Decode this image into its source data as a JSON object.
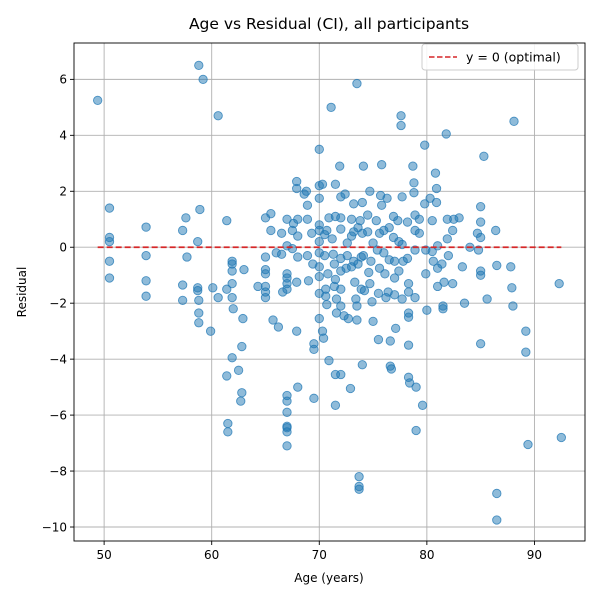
{
  "chart_data": {
    "type": "scatter",
    "title": "Age vs Residual (CI), all participants",
    "xlabel": "Age (years)",
    "ylabel": "Residual",
    "xlim": [
      47.2,
      94.7
    ],
    "ylim": [
      -10.5,
      7.3
    ],
    "xticks": [
      50,
      60,
      70,
      80,
      90
    ],
    "yticks": [
      -10,
      -8,
      -6,
      -4,
      -2,
      0,
      2,
      4,
      6
    ],
    "xtick_labels": [
      "50",
      "60",
      "70",
      "80",
      "90"
    ],
    "ytick_labels": [
      "−10",
      "−8",
      "−6",
      "−4",
      "−2",
      "0",
      "2",
      "4",
      "6"
    ],
    "grid": true,
    "legend_position": "top-right",
    "point_color": "#1f77b4",
    "series": [
      {
        "values_xy": [
          [
            49.4,
            5.25
          ],
          [
            50.5,
            1.4
          ],
          [
            50.5,
            0.35
          ],
          [
            50.5,
            0.2
          ],
          [
            50.5,
            -0.5
          ],
          [
            50.5,
            -1.1
          ],
          [
            53.9,
            0.72
          ],
          [
            53.9,
            -0.3
          ],
          [
            53.9,
            -1.2
          ],
          [
            53.9,
            -1.75
          ],
          [
            57.3,
            0.6
          ],
          [
            57.6,
            1.05
          ],
          [
            57.7,
            -0.35
          ],
          [
            57.3,
            -1.35
          ],
          [
            57.3,
            -1.9
          ],
          [
            58.8,
            6.5
          ],
          [
            59.2,
            6.0
          ],
          [
            58.9,
            1.35
          ],
          [
            58.7,
            0.2
          ],
          [
            58.7,
            -1.45
          ],
          [
            58.7,
            -1.55
          ],
          [
            58.8,
            -1.9
          ],
          [
            58.8,
            -2.35
          ],
          [
            58.8,
            -2.7
          ],
          [
            60.6,
            4.7
          ],
          [
            60.1,
            -1.45
          ],
          [
            60.6,
            -1.8
          ],
          [
            59.9,
            -3.0
          ],
          [
            61.4,
            0.95
          ],
          [
            61.4,
            -1.5
          ],
          [
            61.9,
            -0.5
          ],
          [
            61.9,
            -0.6
          ],
          [
            61.9,
            -0.85
          ],
          [
            61.9,
            -1.3
          ],
          [
            61.9,
            -1.8
          ],
          [
            62.0,
            -2.2
          ],
          [
            61.9,
            -3.95
          ],
          [
            61.4,
            -4.6
          ],
          [
            61.5,
            -6.3
          ],
          [
            61.5,
            -6.6
          ],
          [
            62.5,
            -4.4
          ],
          [
            62.8,
            -3.55
          ],
          [
            62.9,
            -2.55
          ],
          [
            63.0,
            -0.8
          ],
          [
            62.8,
            -5.2
          ],
          [
            62.7,
            -5.5
          ],
          [
            64.3,
            -1.4
          ],
          [
            65.0,
            1.05
          ],
          [
            65.0,
            -0.35
          ],
          [
            65.0,
            -0.8
          ],
          [
            65.0,
            -0.95
          ],
          [
            65.0,
            -1.4
          ],
          [
            65.0,
            -1.6
          ],
          [
            65.0,
            -1.8
          ],
          [
            65.5,
            1.2
          ],
          [
            65.5,
            0.6
          ],
          [
            66.0,
            -0.2
          ],
          [
            65.7,
            -2.6
          ],
          [
            66.2,
            -2.85
          ],
          [
            66.5,
            0.5
          ],
          [
            66.5,
            -0.25
          ],
          [
            66.6,
            -1.6
          ],
          [
            67.0,
            1.0
          ],
          [
            67.0,
            0.05
          ],
          [
            67.0,
            -0.95
          ],
          [
            67.0,
            -1.1
          ],
          [
            67.0,
            -1.3
          ],
          [
            67.0,
            -1.5
          ],
          [
            67.0,
            -5.3
          ],
          [
            67.0,
            -5.5
          ],
          [
            67.0,
            -5.9
          ],
          [
            67.0,
            -6.4
          ],
          [
            67.0,
            -6.45
          ],
          [
            67.0,
            -6.6
          ],
          [
            67.0,
            -7.1
          ],
          [
            67.5,
            0.6
          ],
          [
            67.5,
            -0.05
          ],
          [
            67.6,
            0.85
          ],
          [
            67.9,
            2.35
          ],
          [
            67.9,
            2.1
          ],
          [
            68.0,
            0.4
          ],
          [
            68.0,
            1.0
          ],
          [
            68.0,
            -0.35
          ],
          [
            67.9,
            -1.25
          ],
          [
            67.9,
            -3.0
          ],
          [
            68.0,
            -5.0
          ],
          [
            68.6,
            1.9
          ],
          [
            68.8,
            2.0
          ],
          [
            68.9,
            1.5
          ],
          [
            68.9,
            1.0
          ],
          [
            68.9,
            -0.3
          ],
          [
            69.0,
            -1.2
          ],
          [
            69.3,
            0.5
          ],
          [
            69.4,
            -0.6
          ],
          [
            69.5,
            -3.45
          ],
          [
            69.5,
            -3.65
          ],
          [
            69.5,
            -5.4
          ],
          [
            70.0,
            3.5
          ],
          [
            70.0,
            2.2
          ],
          [
            70.0,
            1.75
          ],
          [
            70.0,
            0.8
          ],
          [
            70.0,
            0.6
          ],
          [
            70.0,
            0.2
          ],
          [
            70.0,
            -0.2
          ],
          [
            70.0,
            -0.7
          ],
          [
            70.0,
            -1.05
          ],
          [
            70.0,
            -1.65
          ],
          [
            70.0,
            -2.55
          ],
          [
            70.3,
            2.25
          ],
          [
            70.3,
            -3.0
          ],
          [
            70.4,
            -3.25
          ],
          [
            70.5,
            0.45
          ],
          [
            70.5,
            -0.3
          ],
          [
            70.6,
            -1.5
          ],
          [
            70.6,
            -1.75
          ],
          [
            70.7,
            -2.05
          ],
          [
            70.7,
            0.6
          ],
          [
            70.8,
            -0.95
          ],
          [
            70.9,
            1.05
          ],
          [
            70.9,
            -4.05
          ],
          [
            71.1,
            5.0
          ],
          [
            71.2,
            0.3
          ],
          [
            71.3,
            -0.25
          ],
          [
            71.4,
            -0.6
          ],
          [
            71.4,
            -1.4
          ],
          [
            71.5,
            2.25
          ],
          [
            71.5,
            1.1
          ],
          [
            71.5,
            -1.15
          ],
          [
            71.6,
            -1.85
          ],
          [
            71.6,
            -2.35
          ],
          [
            71.5,
            -4.55
          ],
          [
            71.5,
            -5.65
          ],
          [
            71.9,
            2.9
          ],
          [
            72.0,
            1.8
          ],
          [
            72.0,
            1.05
          ],
          [
            72.0,
            0.65
          ],
          [
            72.0,
            -0.4
          ],
          [
            72.0,
            -0.85
          ],
          [
            72.0,
            -1.5
          ],
          [
            72.0,
            -2.1
          ],
          [
            72.0,
            -4.55
          ],
          [
            72.4,
            1.9
          ],
          [
            72.5,
            -0.75
          ],
          [
            72.3,
            -2.45
          ],
          [
            72.6,
            -0.3
          ],
          [
            72.6,
            0.15
          ],
          [
            72.7,
            -2.55
          ],
          [
            72.9,
            -5.05
          ],
          [
            73.0,
            1.0
          ],
          [
            73.0,
            0.4
          ],
          [
            73.0,
            -0.7
          ],
          [
            73.2,
            1.55
          ],
          [
            73.2,
            0.55
          ],
          [
            73.2,
            -0.5
          ],
          [
            73.3,
            -1.25
          ],
          [
            73.4,
            -1.85
          ],
          [
            73.5,
            -2.1
          ],
          [
            73.5,
            -2.6
          ],
          [
            73.5,
            5.85
          ],
          [
            73.6,
            0.7
          ],
          [
            73.6,
            -0.6
          ],
          [
            73.7,
            -8.2
          ],
          [
            73.7,
            -8.55
          ],
          [
            73.7,
            -8.65
          ],
          [
            73.8,
            0.95
          ],
          [
            73.9,
            -0.35
          ],
          [
            73.9,
            -1.5
          ],
          [
            74.1,
            2.9
          ],
          [
            74.0,
            1.6
          ],
          [
            74.0,
            0.5
          ],
          [
            74.1,
            -0.3
          ],
          [
            74.2,
            -1.55
          ],
          [
            74.0,
            -4.2
          ],
          [
            74.5,
            1.15
          ],
          [
            74.5,
            0.55
          ],
          [
            74.6,
            -0.9
          ],
          [
            74.7,
            2.0
          ],
          [
            74.7,
            -1.3
          ],
          [
            74.8,
            -0.5
          ],
          [
            74.9,
            -1.95
          ],
          [
            75.0,
            -2.65
          ],
          [
            75.0,
            0.15
          ],
          [
            75.3,
            0.95
          ],
          [
            75.4,
            -0.1
          ],
          [
            75.5,
            -1.65
          ],
          [
            75.5,
            -3.3
          ],
          [
            75.6,
            0.5
          ],
          [
            75.6,
            -0.75
          ],
          [
            75.7,
            1.85
          ],
          [
            75.8,
            2.95
          ],
          [
            75.8,
            1.5
          ],
          [
            76.0,
            0.6
          ],
          [
            76.0,
            -0.2
          ],
          [
            76.1,
            -0.95
          ],
          [
            76.2,
            -1.8
          ],
          [
            76.3,
            1.75
          ],
          [
            76.4,
            -1.6
          ],
          [
            76.5,
            0.7
          ],
          [
            76.5,
            -0.45
          ],
          [
            76.6,
            -3.35
          ],
          [
            76.6,
            -4.25
          ],
          [
            76.7,
            -4.35
          ],
          [
            76.9,
            1.1
          ],
          [
            76.9,
            0.35
          ],
          [
            77.0,
            -0.5
          ],
          [
            77.0,
            -1.1
          ],
          [
            77.0,
            -1.7
          ],
          [
            77.1,
            -2.9
          ],
          [
            77.3,
            0.95
          ],
          [
            77.4,
            0.2
          ],
          [
            77.4,
            -0.85
          ],
          [
            77.6,
            4.7
          ],
          [
            77.6,
            4.35
          ],
          [
            77.7,
            1.8
          ],
          [
            77.7,
            0.1
          ],
          [
            77.7,
            -1.85
          ],
          [
            77.8,
            -0.5
          ],
          [
            78.2,
            0.9
          ],
          [
            78.2,
            -0.4
          ],
          [
            78.3,
            -1.3
          ],
          [
            78.3,
            -1.6
          ],
          [
            78.3,
            -2.35
          ],
          [
            78.3,
            -2.5
          ],
          [
            78.3,
            -3.5
          ],
          [
            78.3,
            -4.65
          ],
          [
            78.4,
            -4.85
          ],
          [
            78.7,
            2.9
          ],
          [
            78.8,
            2.3
          ],
          [
            78.8,
            1.95
          ],
          [
            78.9,
            1.15
          ],
          [
            78.9,
            0.6
          ],
          [
            78.9,
            -0.1
          ],
          [
            78.9,
            -1.8
          ],
          [
            79.0,
            -5.0
          ],
          [
            79.0,
            -6.55
          ],
          [
            79.3,
            1.0
          ],
          [
            79.3,
            0.5
          ],
          [
            79.6,
            -5.65
          ],
          [
            79.8,
            3.65
          ],
          [
            79.8,
            1.55
          ],
          [
            79.9,
            -0.1
          ],
          [
            79.9,
            -0.95
          ],
          [
            80.0,
            -2.25
          ],
          [
            80.3,
            1.75
          ],
          [
            80.5,
            0.95
          ],
          [
            80.5,
            -0.15
          ],
          [
            80.6,
            -0.5
          ],
          [
            80.8,
            2.65
          ],
          [
            80.9,
            2.1
          ],
          [
            80.9,
            1.6
          ],
          [
            81.0,
            0.05
          ],
          [
            81.0,
            -0.75
          ],
          [
            81.0,
            -1.4
          ],
          [
            81.4,
            -0.6
          ],
          [
            81.5,
            -2.1
          ],
          [
            81.5,
            -2.2
          ],
          [
            81.6,
            -1.25
          ],
          [
            81.8,
            4.05
          ],
          [
            81.9,
            1.0
          ],
          [
            81.9,
            0.3
          ],
          [
            82.0,
            -0.3
          ],
          [
            82.4,
            0.6
          ],
          [
            82.4,
            -1.3
          ],
          [
            82.5,
            1.0
          ],
          [
            83.0,
            1.05
          ],
          [
            83.3,
            -0.7
          ],
          [
            83.5,
            -2.0
          ],
          [
            84.0,
            0.0
          ],
          [
            84.7,
            0.5
          ],
          [
            84.8,
            -0.1
          ],
          [
            85.0,
            1.45
          ],
          [
            85.0,
            0.9
          ],
          [
            85.0,
            0.35
          ],
          [
            85.0,
            -0.85
          ],
          [
            85.0,
            -1.0
          ],
          [
            85.0,
            -3.45
          ],
          [
            85.3,
            3.25
          ],
          [
            85.6,
            -1.85
          ],
          [
            86.4,
            0.6
          ],
          [
            86.5,
            -0.65
          ],
          [
            86.5,
            -8.8
          ],
          [
            86.5,
            -9.75
          ],
          [
            87.8,
            -0.7
          ],
          [
            87.9,
            -1.45
          ],
          [
            88.0,
            -2.1
          ],
          [
            88.1,
            4.5
          ],
          [
            89.2,
            -3.0
          ],
          [
            89.2,
            -3.75
          ],
          [
            89.4,
            -7.05
          ],
          [
            92.3,
            -1.3
          ],
          [
            92.5,
            -6.8
          ]
        ]
      }
    ],
    "reference_line": {
      "label": "y = 0 (optimal)",
      "y": 0,
      "x_range": [
        49.4,
        92.5
      ],
      "color": "#d62728",
      "style": "dashed"
    }
  }
}
